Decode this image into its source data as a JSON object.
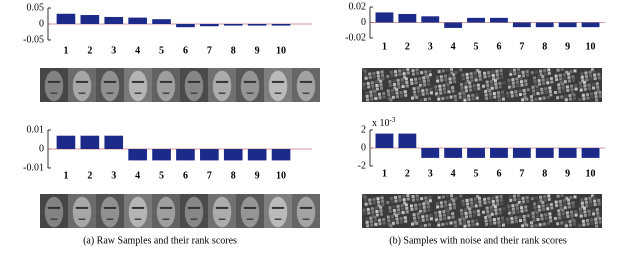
{
  "chart_data": [
    {
      "type": "bar",
      "categories": [
        "1",
        "2",
        "3",
        "4",
        "5",
        "6",
        "7",
        "8",
        "9",
        "10"
      ],
      "values": [
        0.032,
        0.028,
        0.022,
        0.02,
        0.015,
        -0.01,
        -0.007,
        -0.005,
        -0.005,
        -0.005
      ],
      "color": "#1c2a8a",
      "ylim": [
        -0.05,
        0.05
      ],
      "yticks": [
        0.05,
        0,
        -0.05
      ]
    },
    {
      "type": "bar",
      "categories": [
        "1",
        "2",
        "3",
        "4",
        "5",
        "6",
        "7",
        "8",
        "9",
        "10"
      ],
      "values": [
        0.013,
        0.011,
        0.008,
        -0.007,
        0.006,
        0.006,
        -0.006,
        -0.006,
        -0.006,
        -0.006
      ],
      "color": "#1c2a8a",
      "ylim": [
        -0.02,
        0.02
      ],
      "yticks": [
        0.02,
        0,
        -0.02
      ]
    },
    {
      "type": "bar",
      "categories": [
        "1",
        "2",
        "3",
        "4",
        "5",
        "6",
        "7",
        "8",
        "9",
        "10"
      ],
      "values": [
        0.007,
        0.007,
        0.007,
        -0.006,
        -0.006,
        -0.006,
        -0.006,
        -0.006,
        -0.006,
        -0.006
      ],
      "color": "#1c2a8a",
      "ylim": [
        -0.01,
        0.01
      ],
      "yticks": [
        0.01,
        0,
        -0.01
      ]
    },
    {
      "type": "bar",
      "categories": [
        "1",
        "2",
        "3",
        "4",
        "5",
        "6",
        "7",
        "8",
        "9",
        "10"
      ],
      "values": [
        1.6,
        1.6,
        -1.1,
        -1.1,
        -1.1,
        -1.1,
        -1.1,
        -1.1,
        -1.1,
        -1.1
      ],
      "color": "#1c2a8a",
      "ylim": [
        -2,
        2
      ],
      "yticks": [
        2,
        0,
        -2
      ],
      "scale_label": "x 10",
      "scale_exponent": "-3"
    }
  ],
  "captions": [
    "(a) Raw Samples and their rank scores",
    "(b) Samples with noise and their rank scores"
  ]
}
